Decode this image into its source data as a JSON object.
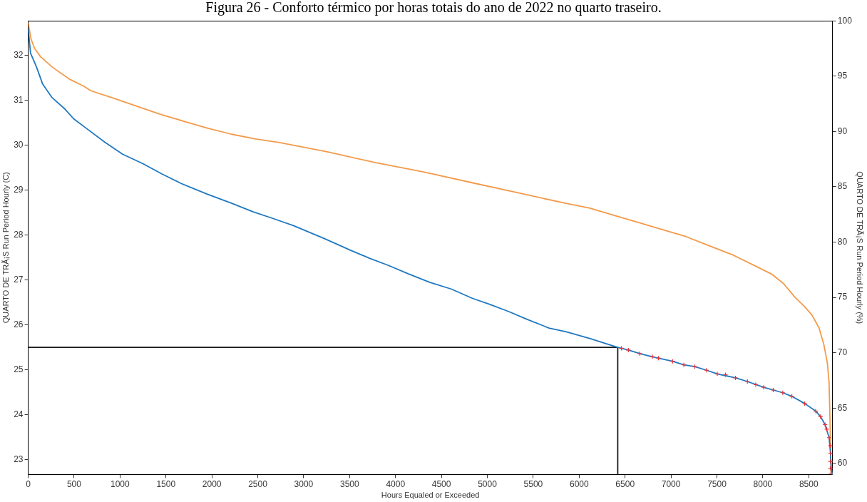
{
  "chart_data": {
    "type": "line",
    "title": "Figura 26 - Conforto térmico por horas totais do ano de 2022 no quarto traseiro.",
    "xlabel": "Hours Equaled or Exceeded",
    "ylabel": "QUARTO DE TRÃ¡S Run Period Hourly (C)",
    "y2label": "QUARTO DE TRÃ¡S Run Period Hourly (%)",
    "xlim": [
      0,
      8760
    ],
    "xticks": [
      0,
      500,
      1000,
      1500,
      2000,
      2500,
      3000,
      3500,
      4000,
      4500,
      5000,
      5500,
      6000,
      6500,
      7000,
      7500,
      8000,
      8500
    ],
    "ylim": [
      22.67,
      32.77
    ],
    "yticks": [
      23,
      24,
      25,
      26,
      27,
      28,
      29,
      30,
      31,
      32
    ],
    "y2lim": [
      59,
      100
    ],
    "y2ticks": [
      60,
      65,
      70,
      75,
      80,
      85,
      90,
      95,
      100
    ],
    "marker": "none",
    "line_style": "solid",
    "series": [
      {
        "color": "#1a1a1a",
        "x": [
          0,
          6420,
          6420
        ],
        "values": [
          25.5,
          25.5,
          22.67
        ]
      },
      {
        "axis": "y2",
        "color": "#f39a4a",
        "x": [
          0,
          31,
          70,
          135,
          265,
          447,
          604,
          682,
          916,
          1175,
          1435,
          1695,
          1956,
          2216,
          2476,
          2736,
          3256,
          3775,
          4296,
          4816,
          5335,
          5856,
          6116,
          6376,
          6636,
          6896,
          7156,
          7416,
          7676,
          7936,
          8092,
          8222,
          8352,
          8456,
          8534,
          8612,
          8664,
          8703,
          8721,
          8729,
          8737,
          8742,
          8760
        ],
        "values": [
          99.8,
          98.35,
          97.5,
          96.75,
          95.8,
          94.74,
          94.1,
          93.68,
          93.04,
          92.3,
          91.56,
          90.92,
          90.29,
          89.75,
          89.33,
          89.0,
          88.16,
          87.2,
          86.36,
          85.4,
          84.45,
          83.5,
          83.07,
          82.43,
          81.8,
          81.16,
          80.52,
          79.67,
          78.83,
          77.77,
          77.13,
          76.28,
          75.0,
          74.16,
          73.42,
          72.25,
          70.76,
          69.06,
          67.37,
          64.82,
          61.64,
          59.3,
          59.0
        ]
      },
      {
        "color": "#1f78c1",
        "x": [
          0,
          26,
          91,
          156,
          260,
          403,
          494,
          650,
          833,
          1028,
          1249,
          1457,
          1665,
          1952,
          2212,
          2446,
          2680,
          2888,
          3226,
          3513,
          3721,
          3929,
          4137,
          4371,
          4605,
          4840,
          5022,
          5230,
          5438,
          5672,
          5854,
          6114,
          6420,
          6536,
          6661,
          6797,
          7017,
          7140,
          7259,
          7387,
          7504,
          7702,
          7832,
          8009,
          8217,
          8316,
          8456,
          8576,
          8628,
          8678,
          8722,
          8737,
          8745,
          8760
        ],
        "values": [
          32.58,
          32.05,
          31.74,
          31.37,
          31.06,
          30.8,
          30.59,
          30.35,
          30.07,
          29.8,
          29.59,
          29.36,
          29.15,
          28.91,
          28.71,
          28.52,
          28.36,
          28.21,
          27.92,
          27.66,
          27.48,
          27.32,
          27.14,
          26.95,
          26.8,
          26.59,
          26.46,
          26.3,
          26.12,
          25.93,
          25.85,
          25.7,
          25.5,
          25.44,
          25.36,
          25.29,
          25.19,
          25.11,
          25.07,
          24.99,
          24.91,
          24.82,
          24.74,
          24.61,
          24.49,
          24.41,
          24.25,
          24.08,
          23.96,
          23.78,
          23.49,
          23.14,
          22.81,
          22.67
        ]
      },
      {
        "type": "scatter",
        "marker": "cross",
        "color": "#e8303a",
        "x": [
          6460,
          6536,
          6661,
          6797,
          6864,
          7017,
          7140,
          7259,
          7387,
          7504,
          7593,
          7702,
          7832,
          7923,
          8009,
          8113,
          8217,
          8316,
          8456,
          8576,
          8628,
          8678,
          8696,
          8722,
          8735,
          8737,
          8737,
          8737,
          8743
        ],
        "values": [
          25.48,
          25.44,
          25.36,
          25.29,
          25.26,
          25.19,
          25.11,
          25.07,
          24.99,
          24.91,
          24.89,
          24.82,
          24.74,
          24.67,
          24.61,
          24.55,
          24.49,
          24.41,
          24.25,
          24.08,
          23.96,
          23.78,
          23.68,
          23.49,
          23.31,
          23.14,
          22.96,
          22.81,
          22.7
        ]
      }
    ]
  }
}
